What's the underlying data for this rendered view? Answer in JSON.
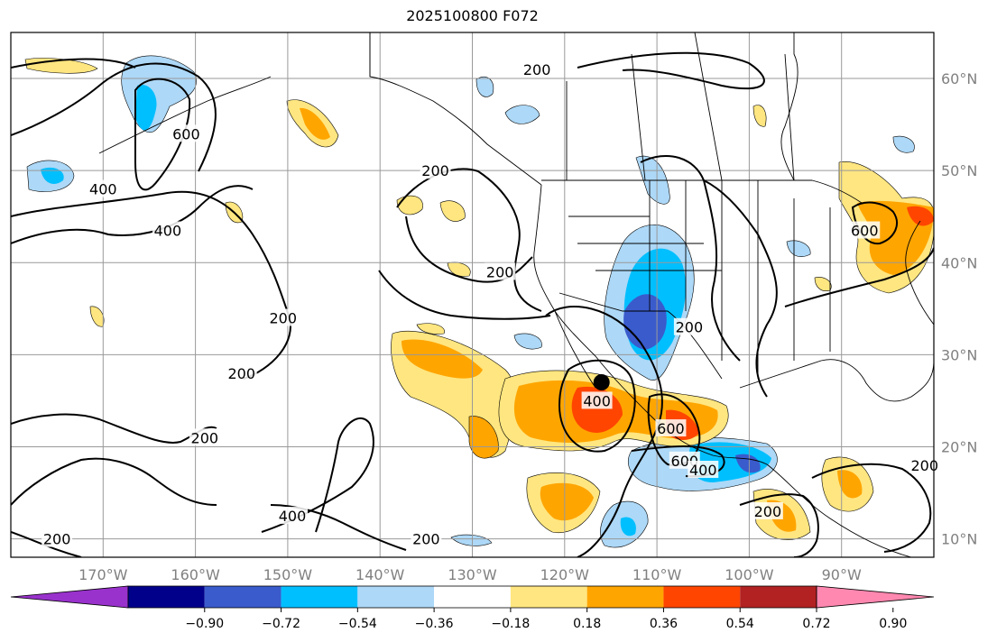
{
  "title": "2025100800 F072",
  "map": {
    "projection": "PlateCarree",
    "lon_range": [
      -180,
      -80
    ],
    "lat_range": [
      8,
      65
    ],
    "gridlines": true,
    "lon_ticks": [
      {
        "value": -170,
        "label": "170°W"
      },
      {
        "value": -160,
        "label": "160°W"
      },
      {
        "value": -150,
        "label": "150°W"
      },
      {
        "value": -140,
        "label": "140°W"
      },
      {
        "value": -130,
        "label": "130°W"
      },
      {
        "value": -120,
        "label": "120°W"
      },
      {
        "value": -110,
        "label": "110°W"
      },
      {
        "value": -100,
        "label": "100°W"
      },
      {
        "value": -90,
        "label": "90°W"
      }
    ],
    "lat_ticks": [
      {
        "value": 10,
        "label": "10°N"
      },
      {
        "value": 20,
        "label": "20°N"
      },
      {
        "value": 30,
        "label": "30°N"
      },
      {
        "value": 40,
        "label": "40°N"
      },
      {
        "value": 50,
        "label": "50°N"
      },
      {
        "value": 60,
        "label": "60°N"
      }
    ],
    "marker": {
      "lon": -116,
      "lat": 27,
      "color": "#000000"
    },
    "contour_labels": [
      {
        "text": "200",
        "lon": -123,
        "lat": 61
      },
      {
        "text": "600",
        "lon": -161,
        "lat": 54
      },
      {
        "text": "400",
        "lon": -170,
        "lat": 48
      },
      {
        "text": "400",
        "lon": -163,
        "lat": 43.5
      },
      {
        "text": "200",
        "lon": -134,
        "lat": 50
      },
      {
        "text": "200",
        "lon": -127,
        "lat": 39
      },
      {
        "text": "200",
        "lon": -150.5,
        "lat": 34
      },
      {
        "text": "200",
        "lon": -155,
        "lat": 28
      },
      {
        "text": "400",
        "lon": -116.5,
        "lat": 25
      },
      {
        "text": "600",
        "lon": -108.5,
        "lat": 22
      },
      {
        "text": "200",
        "lon": -106.5,
        "lat": 33
      },
      {
        "text": "600",
        "lon": -107,
        "lat": 18.5
      },
      {
        "text": "400",
        "lon": -105,
        "lat": 17.5
      },
      {
        "text": "200",
        "lon": -159,
        "lat": 21
      },
      {
        "text": "200",
        "lon": -98,
        "lat": 13
      },
      {
        "text": "200",
        "lon": -81,
        "lat": 18
      },
      {
        "text": "400",
        "lon": -149.5,
        "lat": 12.5
      },
      {
        "text": "200",
        "lon": -135,
        "lat": 10
      },
      {
        "text": "200",
        "lon": -175,
        "lat": 10
      },
      {
        "text": "600",
        "lon": -87.5,
        "lat": 43.5
      }
    ]
  },
  "colorbar": {
    "tick_labels": [
      "−0.90",
      "−0.72",
      "−0.54",
      "−0.36",
      "−0.18",
      "0.18",
      "0.36",
      "0.54",
      "0.72",
      "0.90"
    ],
    "colors": [
      "#9932cc",
      "#00008b",
      "#3a5bcc",
      "#00bfff",
      "#add8f7",
      "#ffffff",
      "#ffe680",
      "#ffa500",
      "#ff4500",
      "#b22222",
      "#ff88b0"
    ],
    "extend": "both"
  },
  "legend_colors": {
    "coast": "#000000",
    "contour": "#000000",
    "grid": "#999999"
  }
}
